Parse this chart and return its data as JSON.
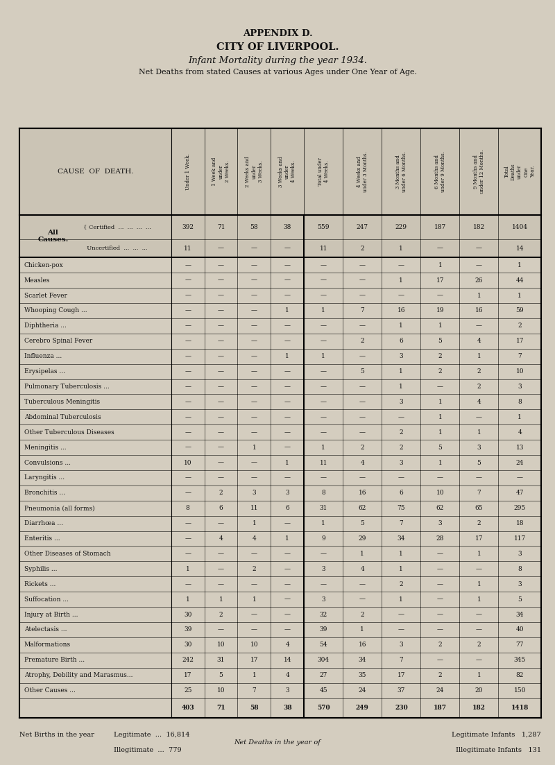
{
  "appendix": "APPENDIX D.",
  "title1": "CITY OF LIVERPOOL.",
  "title2": "Infant Mortality during the year 1934.",
  "title3": "Net Deaths from stated Causes at various Ages under One Year of Age.",
  "col_headers": [
    "Under 1 Week.",
    "1 Week and\nunder\n2 Weeks.",
    "2 Weeks and\nunder\n3 Weeks.",
    "3 Weeks and\nunder\n4 Weeks.",
    "Total under\n4 Weeks.",
    "4 Weeks and\nunder 3 Months.",
    "3 Months and\nunder 6 Months.",
    "6 Months and\nunder 9 Months.",
    "9 Months and\nunder 12 Months.",
    "Total\nDeaths\nunder\nOne\nYear."
  ],
  "rows": [
    {
      "cause": "All\nCauses.",
      "sub": "Certified ...",
      "vals": [
        "392",
        "71",
        "58",
        "38",
        "559",
        "247",
        "229",
        "187",
        "182",
        "1404"
      ],
      "bold": false,
      "all_causes": true,
      "certified": true
    },
    {
      "cause": "",
      "sub": "Uncertified",
      "vals": [
        "11",
        "—",
        "—",
        "—",
        "11",
        "2",
        "1",
        "—",
        "—",
        "14"
      ],
      "bold": false,
      "all_causes": true,
      "certified": false
    },
    {
      "cause": "Chicken-pox",
      "sub": "",
      "vals": [
        "—",
        "—",
        "—",
        "—",
        "—",
        "—",
        "—",
        "1",
        "—",
        "1"
      ],
      "bold": false,
      "all_causes": false,
      "certified": false
    },
    {
      "cause": "Measles",
      "sub": "",
      "vals": [
        "—",
        "—",
        "—",
        "—",
        "—",
        "—",
        "1",
        "17",
        "26",
        "44"
      ],
      "bold": false,
      "all_causes": false,
      "certified": false
    },
    {
      "cause": "Scarlet Fever",
      "sub": "",
      "vals": [
        "—",
        "—",
        "—",
        "—",
        "—",
        "—",
        "—",
        "—",
        "1",
        "1"
      ],
      "bold": false,
      "all_causes": false,
      "certified": false
    },
    {
      "cause": "Whooping Cough ...",
      "sub": "",
      "vals": [
        "—",
        "—",
        "—",
        "1",
        "1",
        "7",
        "16",
        "19",
        "16",
        "59"
      ],
      "bold": false,
      "all_causes": false,
      "certified": false
    },
    {
      "cause": "Diphtheria ...",
      "sub": "",
      "vals": [
        "—",
        "—",
        "—",
        "—",
        "—",
        "—",
        "1",
        "1",
        "—",
        "2"
      ],
      "bold": false,
      "all_causes": false,
      "certified": false
    },
    {
      "cause": "Cerebro Spinal Fever",
      "sub": "",
      "vals": [
        "—",
        "—",
        "—",
        "—",
        "—",
        "2",
        "6",
        "5",
        "4",
        "17"
      ],
      "bold": false,
      "all_causes": false,
      "certified": false
    },
    {
      "cause": "Influenza ...",
      "sub": "",
      "vals": [
        "—",
        "—",
        "—",
        "1",
        "1",
        "—",
        "3",
        "2",
        "1",
        "7"
      ],
      "bold": false,
      "all_causes": false,
      "certified": false
    },
    {
      "cause": "Erysipelas ...",
      "sub": "",
      "vals": [
        "—",
        "—",
        "—",
        "—",
        "—",
        "5",
        "1",
        "2",
        "2",
        "10"
      ],
      "bold": false,
      "all_causes": false,
      "certified": false
    },
    {
      "cause": "Pulmonary Tuberculosis ...",
      "sub": "",
      "vals": [
        "—",
        "—",
        "—",
        "—",
        "—",
        "—",
        "1",
        "—",
        "2",
        "3"
      ],
      "bold": false,
      "all_causes": false,
      "certified": false
    },
    {
      "cause": "Tuberculous Meningitis",
      "sub": "",
      "vals": [
        "—",
        "—",
        "—",
        "—",
        "—",
        "—",
        "3",
        "1",
        "4",
        "8"
      ],
      "bold": false,
      "all_causes": false,
      "certified": false
    },
    {
      "cause": "Abdominal Tuberculosis",
      "sub": "",
      "vals": [
        "—",
        "—",
        "—",
        "—",
        "—",
        "—",
        "—",
        "1",
        "—",
        "1"
      ],
      "bold": false,
      "all_causes": false,
      "certified": false
    },
    {
      "cause": "Other Tuberculous Diseases",
      "sub": "",
      "vals": [
        "—",
        "—",
        "—",
        "—",
        "—",
        "—",
        "2",
        "1",
        "1",
        "4"
      ],
      "bold": false,
      "all_causes": false,
      "certified": false
    },
    {
      "cause": "Meningitis ...",
      "sub": "",
      "vals": [
        "—",
        "—",
        "1",
        "—",
        "1",
        "2",
        "2",
        "5",
        "3",
        "13"
      ],
      "bold": false,
      "all_causes": false,
      "certified": false
    },
    {
      "cause": "Convulsions ...",
      "sub": "",
      "vals": [
        "10",
        "—",
        "—",
        "1",
        "11",
        "4",
        "3",
        "1",
        "5",
        "24"
      ],
      "bold": false,
      "all_causes": false,
      "certified": false
    },
    {
      "cause": "Laryngitis ...",
      "sub": "",
      "vals": [
        "—",
        "—",
        "—",
        "—",
        "—",
        "—",
        "—",
        "—",
        "—",
        "—"
      ],
      "bold": false,
      "all_causes": false,
      "certified": false
    },
    {
      "cause": "Bronchitis ...",
      "sub": "",
      "vals": [
        "—",
        "2",
        "3",
        "3",
        "8",
        "16",
        "6",
        "10",
        "7",
        "47"
      ],
      "bold": false,
      "all_causes": false,
      "certified": false
    },
    {
      "cause": "Pneumonia (all forms)",
      "sub": "",
      "vals": [
        "8",
        "6",
        "11",
        "6",
        "31",
        "62",
        "75",
        "62",
        "65",
        "295"
      ],
      "bold": false,
      "all_causes": false,
      "certified": false
    },
    {
      "cause": "Diarrhœa ...",
      "sub": "",
      "vals": [
        "—",
        "—",
        "1",
        "—",
        "1",
        "5",
        "7",
        "3",
        "2",
        "18"
      ],
      "bold": false,
      "all_causes": false,
      "certified": false
    },
    {
      "cause": "Enteritis ...",
      "sub": "",
      "vals": [
        "—",
        "4",
        "4",
        "1",
        "9",
        "29",
        "34",
        "28",
        "17",
        "117"
      ],
      "bold": false,
      "all_causes": false,
      "certified": false
    },
    {
      "cause": "Other Diseases of Stomach",
      "sub": "",
      "vals": [
        "—",
        "—",
        "—",
        "—",
        "—",
        "1",
        "1",
        "—",
        "1",
        "3"
      ],
      "bold": false,
      "all_causes": false,
      "certified": false
    },
    {
      "cause": "Syphilis ...",
      "sub": "",
      "vals": [
        "1",
        "—",
        "2",
        "—",
        "3",
        "4",
        "1",
        "—",
        "—",
        "8"
      ],
      "bold": false,
      "all_causes": false,
      "certified": false
    },
    {
      "cause": "Rickets ...",
      "sub": "",
      "vals": [
        "—",
        "—",
        "—",
        "—",
        "—",
        "—",
        "2",
        "—",
        "1",
        "3"
      ],
      "bold": false,
      "all_causes": false,
      "certified": false
    },
    {
      "cause": "Suffocation ...",
      "sub": "",
      "vals": [
        "1",
        "1",
        "1",
        "—",
        "3",
        "—",
        "1",
        "—",
        "1",
        "5"
      ],
      "bold": false,
      "all_causes": false,
      "certified": false
    },
    {
      "cause": "Injury at Birth ...",
      "sub": "",
      "vals": [
        "30",
        "2",
        "—",
        "—",
        "32",
        "2",
        "—",
        "—",
        "—",
        "34"
      ],
      "bold": false,
      "all_causes": false,
      "certified": false
    },
    {
      "cause": "Atelectasis ...",
      "sub": "",
      "vals": [
        "39",
        "—",
        "—",
        "—",
        "39",
        "1",
        "—",
        "—",
        "—",
        "40"
      ],
      "bold": false,
      "all_causes": false,
      "certified": false
    },
    {
      "cause": "Malformations",
      "sub": "",
      "vals": [
        "30",
        "10",
        "10",
        "4",
        "54",
        "16",
        "3",
        "2",
        "2",
        "77"
      ],
      "bold": false,
      "all_causes": false,
      "certified": false
    },
    {
      "cause": "Premature Birth ...",
      "sub": "",
      "vals": [
        "242",
        "31",
        "17",
        "14",
        "304",
        "34",
        "7",
        "—",
        "—",
        "345"
      ],
      "bold": false,
      "all_causes": false,
      "certified": false
    },
    {
      "cause": "Atrophy, Debility and Marasmus...",
      "sub": "",
      "vals": [
        "17",
        "5",
        "1",
        "4",
        "27",
        "35",
        "17",
        "2",
        "1",
        "82"
      ],
      "bold": false,
      "all_causes": false,
      "certified": false
    },
    {
      "cause": "Other Causes ...",
      "sub": "",
      "vals": [
        "25",
        "10",
        "7",
        "3",
        "45",
        "24",
        "37",
        "24",
        "20",
        "150"
      ],
      "bold": false,
      "all_causes": false,
      "certified": false
    },
    {
      "cause": "",
      "sub": "",
      "vals": [
        "403",
        "71",
        "58",
        "38",
        "570",
        "249",
        "230",
        "187",
        "182",
        "1418"
      ],
      "bold": true,
      "all_causes": false,
      "certified": false
    }
  ],
  "bg_color": "#d4cdbf",
  "text_color": "#111111"
}
